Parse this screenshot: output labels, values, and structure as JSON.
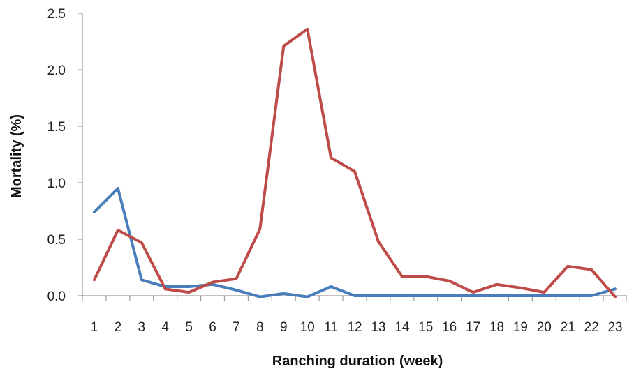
{
  "chart_data": {
    "type": "line",
    "title": "",
    "xlabel": "Ranching duration (week)",
    "ylabel": "Mortality (%)",
    "categories": [
      "1",
      "2",
      "3",
      "4",
      "5",
      "6",
      "7",
      "8",
      "9",
      "10",
      "11",
      "12",
      "13",
      "14",
      "15",
      "16",
      "17",
      "18",
      "19",
      "20",
      "21",
      "22",
      "23"
    ],
    "y_tick_labels": [
      "0.0",
      "0.5",
      "1.0",
      "1.5",
      "2.0",
      "2.5"
    ],
    "y_ticks": [
      0,
      0.5,
      1.0,
      1.5,
      2.0,
      2.5
    ],
    "ylim": [
      0,
      2.5
    ],
    "grid": false,
    "legend": "none",
    "series": [
      {
        "color": "#4a7ebb",
        "values": [
          0.74,
          0.95,
          0.14,
          0.08,
          0.08,
          0.1,
          0.05,
          -0.01,
          0.02,
          -0.01,
          0.08,
          0.0,
          0.0,
          0.0,
          0.0,
          0.0,
          0.0,
          0.0,
          0.0,
          0.0,
          0.0,
          0.0,
          0.06
        ]
      },
      {
        "color": "#be4b48",
        "values": [
          0.14,
          0.58,
          0.47,
          0.06,
          0.03,
          0.12,
          0.15,
          0.59,
          2.21,
          2.36,
          1.22,
          1.1,
          0.48,
          0.17,
          0.17,
          0.13,
          0.03,
          0.1,
          0.07,
          0.03,
          0.26,
          0.23,
          -0.01
        ]
      }
    ]
  }
}
